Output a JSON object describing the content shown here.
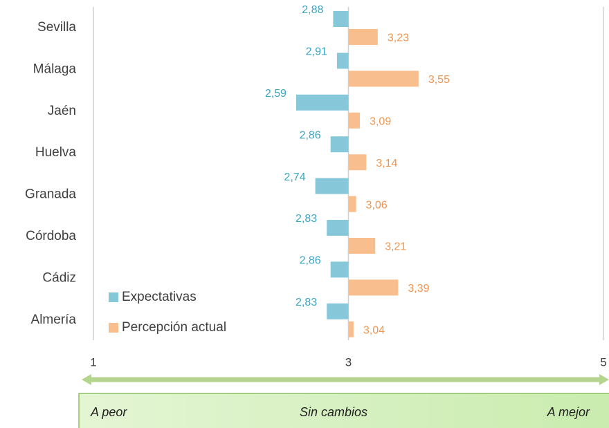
{
  "chart_data": {
    "type": "bar",
    "orientation": "horizontal",
    "categories": [
      "Sevilla",
      "Málaga",
      "Jaén",
      "Huelva",
      "Granada",
      "Córdoba",
      "Cádiz",
      "Almería"
    ],
    "series": [
      {
        "name": "Expectativas",
        "color": "#86c7d9",
        "values": [
          2.88,
          2.91,
          2.59,
          2.86,
          2.74,
          2.83,
          2.86,
          2.83
        ],
        "value_labels": [
          "2,88",
          "2,91",
          "2,59",
          "2,86",
          "2,74",
          "2,83",
          "2,86",
          "2,83"
        ]
      },
      {
        "name": "Percepción actual",
        "color": "#f9be8e",
        "values": [
          3.23,
          3.55,
          3.09,
          3.14,
          3.06,
          3.21,
          3.39,
          3.04
        ],
        "value_labels": [
          "3,23",
          "3,55",
          "3,09",
          "3,14",
          "3,06",
          "3,21",
          "3,39",
          "3,04"
        ]
      }
    ],
    "xlim": [
      1,
      5
    ],
    "xticks": [
      1,
      3,
      5
    ],
    "grid": true,
    "legend": "lower left",
    "annotations": [
      "A peor",
      "Sin cambios",
      "A mejor"
    ]
  }
}
